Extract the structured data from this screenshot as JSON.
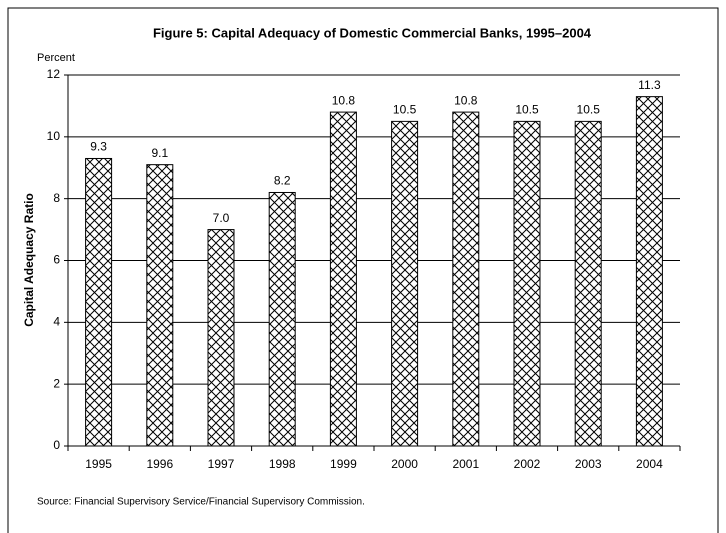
{
  "chart_data": {
    "type": "bar",
    "title": "Figure 5:  Capital Adequacy of Domestic Commercial Banks, 1995–2004",
    "y_unit_label": "Percent",
    "y_axis_label": "Capital Adequacy Ratio",
    "source": "Source: Financial Supervisory Service/Financial Supervisory Commission.",
    "categories": [
      "1995",
      "1996",
      "1997",
      "1998",
      "1999",
      "2000",
      "2001",
      "2002",
      "2003",
      "2004"
    ],
    "values": [
      9.3,
      9.1,
      7.0,
      8.2,
      10.8,
      10.5,
      10.8,
      10.5,
      10.5,
      11.3
    ],
    "value_labels": [
      "9.3",
      "9.1",
      "7.0",
      "8.2",
      "10.8",
      "10.5",
      "10.8",
      "10.5",
      "10.5",
      "11.3"
    ],
    "color": "#000000",
    "ylim": [
      0,
      12
    ],
    "yticks": [
      0,
      2,
      4,
      6,
      8,
      10,
      12
    ],
    "grid": true
  }
}
